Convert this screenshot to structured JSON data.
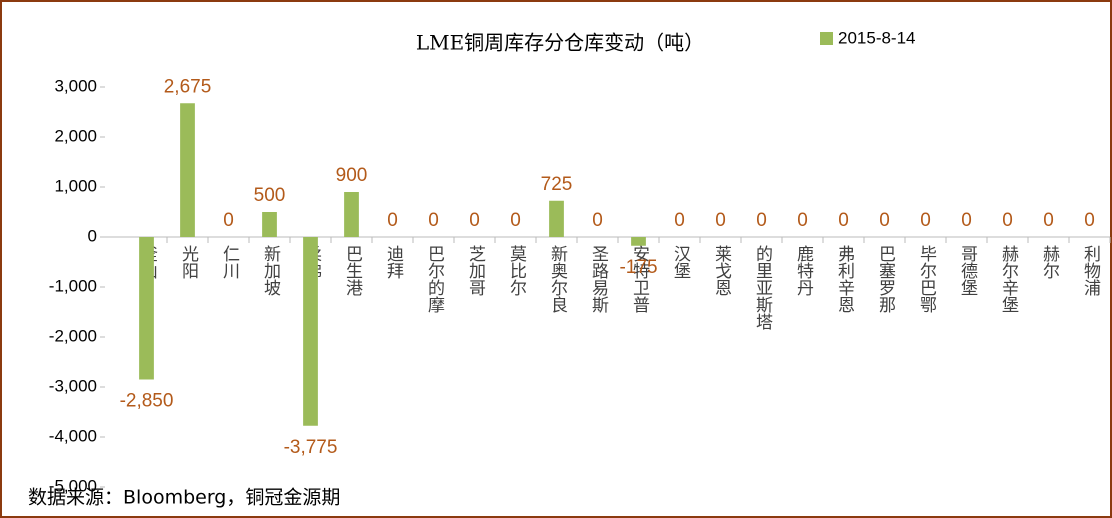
{
  "chart_data": {
    "type": "bar",
    "title": "LME铜周库存分仓库变动（吨）",
    "categories": [
      "釜山",
      "光阳",
      "仁川",
      "新加坡",
      "柔佛",
      "巴生港",
      "迪拜",
      "巴尔的摩",
      "芝加哥",
      "莫比尔",
      "新奥尔良",
      "圣路易斯",
      "安特卫普",
      "汉堡",
      "莱戈恩",
      "的里亚斯塔",
      "鹿特丹",
      "弗利辛恩",
      "巴塞罗那",
      "毕尔巴鄂",
      "哥德堡",
      "赫尔辛堡",
      "赫尔",
      "利物浦"
    ],
    "series": [
      {
        "name": "2015-8-14",
        "color": "#9bbb59",
        "values": [
          -2850,
          2675,
          0,
          500,
          -3775,
          900,
          0,
          0,
          0,
          0,
          725,
          0,
          -175,
          0,
          0,
          0,
          0,
          0,
          0,
          0,
          0,
          0,
          0,
          0
        ],
        "value_labels": [
          "-2,850",
          "2,675",
          "0",
          "500",
          "-3,775",
          "900",
          "0",
          "0",
          "0",
          "0",
          "725",
          "0",
          "-175",
          "0",
          "0",
          "0",
          "0",
          "0",
          "0",
          "0",
          "0",
          "0",
          "0",
          "0"
        ]
      }
    ],
    "ylim": [
      -5000,
      3000
    ],
    "yticks": [
      {
        "value": 3000,
        "label": "3,000"
      },
      {
        "value": 2000,
        "label": "2,000"
      },
      {
        "value": 1000,
        "label": "1,000"
      },
      0,
      {
        "value": -1000,
        "label": "-1,000"
      },
      {
        "value": -2000,
        "label": "-2,000"
      },
      {
        "value": -3000,
        "label": "-3,000"
      },
      {
        "value": -4000,
        "label": "-4,000"
      },
      {
        "value": -5000,
        "label": "-5,000"
      }
    ],
    "grid": false,
    "legend": "top-right",
    "source": "数据来源：Bloomberg，铜冠金源期"
  }
}
